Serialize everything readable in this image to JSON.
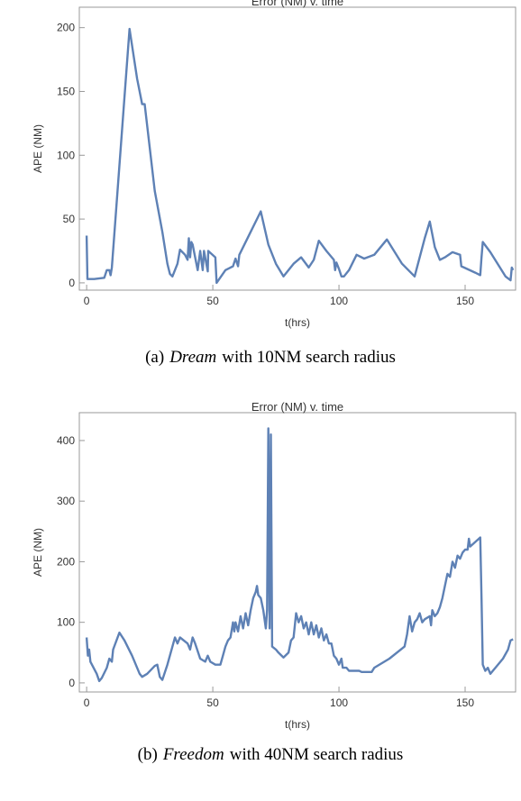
{
  "chart_data": [
    {
      "type": "line",
      "title": "Error (NM) v. time",
      "x_label": "t(hrs)",
      "y_label": "APE (NM)",
      "caption": {
        "label": "(a)",
        "name": "Dream",
        "text": "with 10NM search radius"
      },
      "xlim": [
        -2.9,
        170
      ],
      "ylim": [
        -5.7,
        216
      ],
      "xticks": [
        0,
        50,
        100,
        150
      ],
      "yticks": [
        0,
        50,
        100,
        150,
        200
      ],
      "series": [
        {
          "name": "APE",
          "color": "#5e81b5",
          "x": [
            0,
            0.3,
            3,
            7,
            8,
            9,
            9.5,
            10,
            17,
            20,
            22,
            23,
            27,
            30,
            32,
            33,
            34,
            36,
            37,
            39,
            40,
            40.5,
            41,
            41.5,
            42,
            43,
            44,
            45,
            46,
            46.5,
            48,
            48.2,
            51,
            51.5,
            55,
            58,
            59,
            60,
            60.5,
            65,
            69,
            72,
            75,
            78,
            82,
            85,
            88,
            90,
            92,
            95,
            98,
            98.5,
            99,
            100,
            101,
            102,
            104,
            107,
            110,
            114,
            119,
            125,
            130,
            134,
            136,
            138,
            140,
            142,
            145,
            148,
            148.5,
            154,
            156,
            156.5,
            157,
            160,
            166,
            168,
            168.5,
            169
          ],
          "values": [
            37,
            3,
            3,
            4,
            10,
            10,
            6,
            12,
            199,
            160,
            140,
            140,
            72,
            40,
            15,
            7,
            5,
            15,
            26,
            22,
            18,
            35,
            20,
            32,
            30,
            20,
            10,
            25,
            10,
            25,
            9,
            25,
            20,
            0,
            10,
            13,
            19,
            13,
            22,
            40,
            56,
            30,
            15,
            5,
            15,
            20,
            12,
            18,
            33,
            25,
            18,
            10,
            16,
            11,
            5,
            5,
            10,
            22,
            19,
            22,
            34,
            15,
            5,
            35,
            48,
            28,
            18,
            20,
            24,
            22,
            13,
            8,
            6,
            20,
            32,
            24,
            5,
            2,
            12,
            10
          ]
        }
      ]
    },
    {
      "type": "line",
      "title": "Error (NM) v. time",
      "x_label": "t(hrs)",
      "y_label": "APE (NM)",
      "caption": {
        "label": "(b)",
        "name": "Freedom",
        "text": "with 40NM search radius"
      },
      "xlim": [
        -2.9,
        170
      ],
      "ylim": [
        -15,
        446
      ],
      "xticks": [
        0,
        50,
        100,
        150
      ],
      "yticks": [
        0,
        100,
        200,
        300,
        400
      ],
      "series": [
        {
          "name": "APE",
          "color": "#5e81b5",
          "x": [
            0,
            0.5,
            1,
            1.5,
            4,
            5,
            6,
            8,
            9,
            10,
            10.5,
            13,
            15,
            18,
            21,
            22,
            24,
            27,
            28,
            29,
            30,
            32,
            34,
            35,
            36,
            37,
            40,
            41,
            42,
            43,
            45,
            47,
            48,
            49,
            51,
            53,
            54,
            55,
            56,
            57,
            58,
            58.5,
            59,
            60,
            61,
            62,
            63,
            64,
            65,
            66,
            67,
            67.5,
            68,
            69,
            70,
            71,
            71.5,
            72,
            72.5,
            73,
            73.5,
            75,
            76,
            78,
            80,
            81,
            82,
            83,
            84,
            85,
            86,
            87,
            88,
            89,
            90,
            91,
            92,
            93,
            94,
            95,
            96,
            97,
            98,
            99,
            100,
            101,
            101.5,
            103,
            104,
            108,
            109,
            111,
            113,
            114,
            120,
            126,
            127,
            128,
            129,
            130,
            131,
            132,
            133,
            134,
            136,
            136.5,
            137,
            138,
            139,
            140,
            141,
            142,
            143,
            144,
            145,
            146,
            147,
            148,
            149,
            150,
            151,
            151.5,
            152,
            156,
            156.5,
            157,
            158,
            159,
            160,
            162,
            165,
            167,
            168,
            169
          ],
          "values": [
            75,
            45,
            55,
            35,
            15,
            3,
            8,
            25,
            40,
            35,
            55,
            83,
            70,
            45,
            15,
            10,
            15,
            28,
            30,
            10,
            5,
            30,
            60,
            75,
            65,
            75,
            65,
            55,
            75,
            65,
            40,
            35,
            45,
            35,
            30,
            30,
            45,
            60,
            70,
            75,
            100,
            85,
            100,
            85,
            110,
            90,
            115,
            95,
            120,
            140,
            150,
            160,
            145,
            140,
            120,
            90,
            120,
            420,
            90,
            410,
            60,
            55,
            50,
            42,
            50,
            70,
            75,
            115,
            100,
            110,
            90,
            100,
            80,
            100,
            80,
            95,
            75,
            90,
            70,
            80,
            65,
            65,
            45,
            40,
            30,
            40,
            25,
            25,
            20,
            20,
            18,
            18,
            18,
            25,
            40,
            60,
            80,
            110,
            85,
            100,
            105,
            115,
            100,
            105,
            110,
            95,
            120,
            110,
            115,
            125,
            140,
            160,
            180,
            175,
            200,
            190,
            210,
            205,
            215,
            220,
            220,
            238,
            225,
            240,
            140,
            30,
            20,
            25,
            15,
            25,
            40,
            55,
            70,
            72
          ]
        }
      ]
    }
  ]
}
